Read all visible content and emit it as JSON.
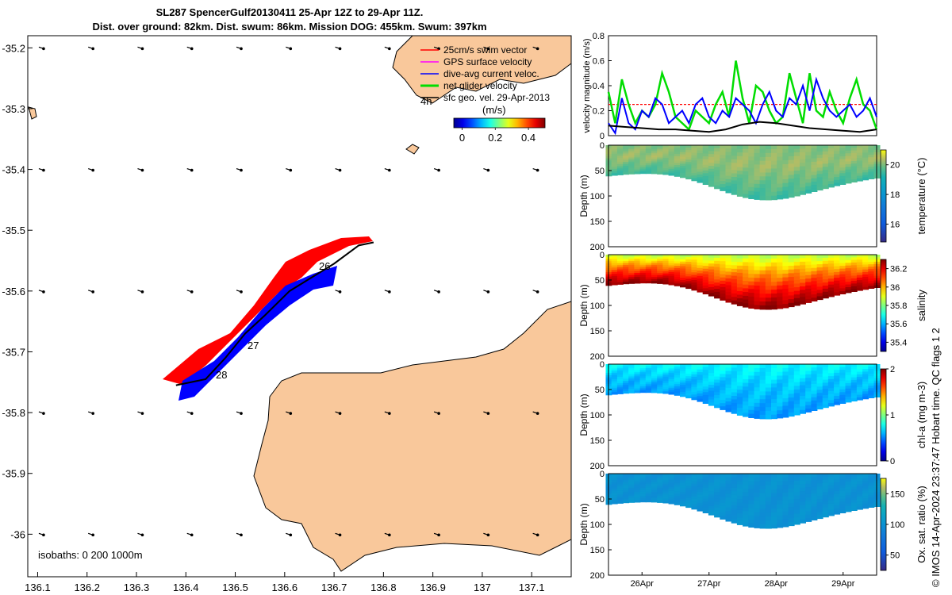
{
  "title_line1": "SL287 SpencerGulf20130411 25-Apr 12Z to 29-Apr 11Z.",
  "title_line2": "Dist. over ground: 82km. Dist. swum: 86km. Mission DOG: 455km. Swum: 397km",
  "footer_credit": "© IMOS 14-Apr-2024 23:37:47 Hobart time. QC flags 1  2",
  "colors": {
    "land": "#f9c89b",
    "swim": "#ff0000",
    "gps": "#ff00ff",
    "current": "#0000ff",
    "net": "#00dd00",
    "geo": "#000000"
  },
  "chart_data": [
    {
      "type": "map",
      "xlim": [
        136.08,
        137.18
      ],
      "ylim": [
        -36.07,
        -35.18
      ],
      "xticks": [
        "136.1",
        "136.2",
        "136.3",
        "136.4",
        "136.5",
        "136.6",
        "136.7",
        "136.8",
        "136.9",
        "137",
        "137.1"
      ],
      "xtick_values": [
        136.1,
        136.2,
        136.3,
        136.4,
        136.5,
        136.6,
        136.7,
        136.8,
        136.9,
        137.0,
        137.1
      ],
      "yticks": [
        "-35.2",
        "-35.3",
        "-35.4",
        "-35.5",
        "-35.6",
        "-35.7",
        "-35.8",
        "-35.9",
        "-36"
      ],
      "ytick_values": [
        -35.2,
        -35.3,
        -35.4,
        -35.5,
        -35.6,
        -35.7,
        -35.8,
        -35.9,
        -36.0
      ],
      "legend": [
        {
          "label": "25cm/s swim vector",
          "color_key": "swim"
        },
        {
          "label": "GPS surface velocity",
          "color_key": "gps"
        },
        {
          "label": "dive-avg current veloc.",
          "color_key": "current"
        },
        {
          "label": "net glider velocity",
          "color_key": "net"
        },
        {
          "label": "sfc geo. vel. 29-Apr-2013",
          "color_key": "geo"
        }
      ],
      "colorbar_label": "(m/s)",
      "colorbar_ticks": [
        "0",
        "0.2",
        "0.4"
      ],
      "colorbar_tick_values": [
        0,
        0.2,
        0.4
      ],
      "colorbar_range": [
        -0.05,
        0.5
      ],
      "annotations": [
        "4h",
        "26",
        "27",
        "28"
      ],
      "isobaths_label": "isobaths: 0   200  1000m",
      "track": [
        [
          136.38,
          -35.755
        ],
        [
          136.44,
          -35.745
        ],
        [
          136.48,
          -35.71
        ],
        [
          136.52,
          -35.67
        ],
        [
          136.56,
          -35.64
        ],
        [
          136.61,
          -35.6
        ],
        [
          136.65,
          -35.58
        ],
        [
          136.7,
          -35.555
        ],
        [
          136.75,
          -35.525
        ],
        [
          136.78,
          -35.52
        ]
      ],
      "geo_arrow_lons": [
        136.1,
        136.2,
        136.3,
        136.4,
        136.5,
        136.6,
        136.7,
        136.8,
        136.9,
        137.0,
        137.1
      ]
    },
    {
      "type": "line",
      "ylabel": "velocity magnitude (m/s)",
      "ylim": [
        0,
        0.8
      ],
      "yticks": [
        "0",
        "0.2",
        "0.4",
        "0.6",
        "0.8"
      ],
      "ytick_values": [
        0,
        0.2,
        0.4,
        0.6,
        0.8
      ],
      "xlim": [
        25.5,
        29.5
      ],
      "swim_level": 0.25,
      "series": [
        {
          "name": "net glider velocity",
          "color_key": "net",
          "x": [
            25.5,
            25.6,
            25.7,
            25.8,
            25.9,
            26.0,
            26.1,
            26.2,
            26.3,
            26.4,
            26.5,
            26.6,
            26.7,
            26.8,
            26.9,
            27.0,
            27.1,
            27.2,
            27.3,
            27.4,
            27.5,
            27.6,
            27.7,
            27.8,
            27.9,
            28.0,
            28.1,
            28.2,
            28.3,
            28.4,
            28.5,
            28.6,
            28.7,
            28.8,
            28.9,
            29.0,
            29.1,
            29.2,
            29.3,
            29.4,
            29.5
          ],
          "y": [
            0.35,
            0.1,
            0.45,
            0.25,
            0.1,
            0.2,
            0.15,
            0.25,
            0.5,
            0.35,
            0.15,
            0.1,
            0.05,
            0.2,
            0.15,
            0.1,
            0.25,
            0.35,
            0.15,
            0.6,
            0.3,
            0.1,
            0.4,
            0.35,
            0.2,
            0.1,
            0.15,
            0.5,
            0.3,
            0.1,
            0.5,
            0.2,
            0.15,
            0.35,
            0.2,
            0.1,
            0.3,
            0.45,
            0.25,
            0.2,
            0.05
          ]
        },
        {
          "name": "dive-avg current veloc.",
          "color_key": "current",
          "x": [
            25.5,
            25.6,
            25.7,
            25.8,
            25.9,
            26.0,
            26.1,
            26.2,
            26.3,
            26.4,
            26.5,
            26.6,
            26.7,
            26.8,
            26.9,
            27.0,
            27.1,
            27.2,
            27.3,
            27.4,
            27.5,
            27.6,
            27.7,
            27.8,
            27.9,
            28.0,
            28.1,
            28.2,
            28.3,
            28.4,
            28.5,
            28.6,
            28.7,
            28.8,
            28.9,
            29.0,
            29.1,
            29.2,
            29.3,
            29.4,
            29.5
          ],
          "y": [
            0.1,
            0.02,
            0.3,
            0.1,
            0.05,
            0.2,
            0.15,
            0.3,
            0.25,
            0.1,
            0.15,
            0.2,
            0.1,
            0.25,
            0.3,
            0.15,
            0.1,
            0.2,
            0.15,
            0.3,
            0.25,
            0.2,
            0.1,
            0.25,
            0.35,
            0.2,
            0.15,
            0.3,
            0.25,
            0.4,
            0.2,
            0.45,
            0.3,
            0.2,
            0.15,
            0.2,
            0.25,
            0.15,
            0.2,
            0.3,
            0.15
          ]
        },
        {
          "name": "sfc geo. vel.",
          "color_key": "geo",
          "x": [
            25.5,
            25.75,
            26.0,
            26.25,
            26.5,
            26.75,
            27.0,
            27.25,
            27.5,
            27.75,
            28.0,
            28.25,
            28.5,
            28.75,
            29.0,
            29.25,
            29.5
          ],
          "y": [
            0.08,
            0.07,
            0.06,
            0.05,
            0.05,
            0.04,
            0.03,
            0.05,
            0.09,
            0.11,
            0.1,
            0.08,
            0.06,
            0.05,
            0.04,
            0.03,
            0.05
          ]
        }
      ]
    },
    {
      "type": "heatmap",
      "ylabel": "Depth (m)",
      "colorbar_label": "temperature (°C)",
      "colorbar_ticks": [
        "16",
        "18",
        "20"
      ],
      "colorbar_tick_values": [
        16,
        18,
        20
      ],
      "crange": [
        14.8,
        21.0
      ],
      "colorbar_reversed": false,
      "colormap": "parula",
      "shallow_value": 20.0,
      "deep_value": 19.5,
      "mid_value": 20.2,
      "ylim": [
        0,
        200
      ],
      "yticks": [
        "0",
        "50",
        "100",
        "150",
        "200"
      ],
      "ytick_values": [
        0,
        50,
        100,
        150,
        200
      ]
    },
    {
      "type": "heatmap",
      "ylabel": "Depth (m)",
      "colorbar_label": "salinity",
      "colorbar_ticks": [
        "35.4",
        "35.6",
        "35.8",
        "36",
        "36.2"
      ],
      "colorbar_tick_values": [
        35.4,
        35.6,
        35.8,
        36.0,
        36.2
      ],
      "crange": [
        35.3,
        36.3
      ],
      "colorbar_reversed": false,
      "colormap": "jet",
      "shallow_value": 35.85,
      "deep_value": 36.3,
      "mid_value": 36.05,
      "ylim": [
        0,
        200
      ],
      "yticks": [
        "0",
        "50",
        "100",
        "150",
        "200"
      ],
      "ytick_values": [
        0,
        50,
        100,
        150,
        200
      ]
    },
    {
      "type": "heatmap",
      "ylabel": "Depth (m)",
      "colorbar_label": "chl-a (mg m-3)",
      "colorbar_ticks": [
        "0",
        "1",
        "2"
      ],
      "colorbar_tick_values": [
        0,
        1,
        2
      ],
      "crange": [
        0,
        2
      ],
      "colorbar_reversed": false,
      "colormap": "jet",
      "shallow_value": 0.75,
      "deep_value": 0.55,
      "mid_value": 0.65,
      "ylim": [
        0,
        200
      ],
      "yticks": [
        "0",
        "50",
        "100",
        "150",
        "200"
      ],
      "ytick_values": [
        0,
        50,
        100,
        150,
        200
      ]
    },
    {
      "type": "heatmap",
      "ylabel": "Depth (m)",
      "colorbar_label": "Ox. sat. ratio (%)",
      "colorbar_ticks": [
        "50",
        "100",
        "150"
      ],
      "colorbar_tick_values": [
        50,
        100,
        150
      ],
      "crange": [
        25,
        175
      ],
      "colorbar_reversed": false,
      "colormap": "parula",
      "shallow_value": 100,
      "deep_value": 100,
      "mid_value": 100,
      "ylim": [
        0,
        200
      ],
      "yticks": [
        "0",
        "50",
        "100",
        "150",
        "200"
      ],
      "ytick_values": [
        0,
        50,
        100,
        150,
        200
      ],
      "xticks": [
        "26Apr",
        "27Apr",
        "28Apr",
        "29Apr"
      ],
      "xtick_values": [
        26,
        27,
        28,
        29
      ]
    }
  ]
}
